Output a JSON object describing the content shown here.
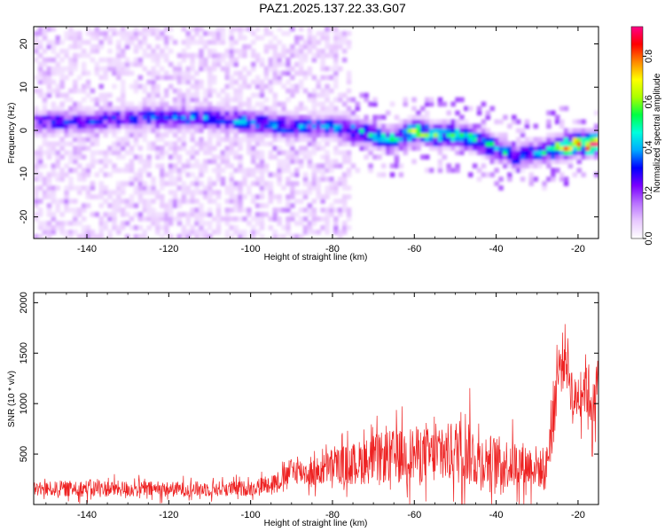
{
  "figure": {
    "title": "PAZ1.2025.137.22.33.G07"
  },
  "colors": {
    "snr_line": "#ee2222",
    "axis": "#000000",
    "background": "#ffffff"
  },
  "chart_data": [
    {
      "type": "heatmap",
      "title": "PAZ1.2025.137.22.33.G07",
      "xlabel": "Height of straight line (km)",
      "ylabel": "Frequency (Hz)",
      "xlim": [
        -153,
        -15
      ],
      "ylim": [
        -25,
        24
      ],
      "xticks": [
        -140,
        -120,
        -100,
        -80,
        -60,
        -40,
        -20
      ],
      "yticks": [
        -20,
        -10,
        0,
        10,
        20
      ],
      "colorbar": {
        "label": "Normalized spectral amplitude",
        "range": [
          0,
          0.93
        ],
        "ticks": [
          0.0,
          0.2,
          0.4,
          0.6,
          0.8
        ],
        "tick_labels": [
          "0.0",
          "0.2",
          "0.4",
          "0.6",
          "0.8"
        ],
        "colormap": [
          "#ffffff",
          "#e8c8ff",
          "#b870ff",
          "#7a00ff",
          "#0000ff",
          "#00aaff",
          "#00ffdd",
          "#00ff44",
          "#aaff00",
          "#ffff00",
          "#ff8800",
          "#ff0000",
          "#ff0088"
        ]
      },
      "ridge": {
        "x": [
          -140,
          -130,
          -120,
          -110,
          -100,
          -90,
          -80,
          -75,
          -70,
          -65,
          -60,
          -55,
          -50,
          -45,
          -40,
          -35,
          -30,
          -25,
          -20,
          -15
        ],
        "freq": [
          2,
          3,
          3,
          3,
          2,
          1,
          1,
          0,
          -1,
          -2,
          0,
          -1,
          -1,
          -2,
          -4,
          -6,
          -5,
          -4,
          -3,
          -3
        ],
        "amplitude": [
          0.25,
          0.28,
          0.3,
          0.3,
          0.32,
          0.33,
          0.3,
          0.35,
          0.38,
          0.4,
          0.5,
          0.45,
          0.42,
          0.4,
          0.4,
          0.35,
          0.3,
          0.55,
          0.7,
          0.85
        ]
      },
      "noise_extent_x": [
        -153,
        -75
      ]
    },
    {
      "type": "line",
      "xlabel": "Height of straight line (km)",
      "ylabel": "SNR (10 * v/v)",
      "xlim": [
        -153,
        -15
      ],
      "ylim": [
        0,
        2100
      ],
      "xticks": [
        -140,
        -120,
        -100,
        -80,
        -60,
        -40,
        -20
      ],
      "yticks": [
        500,
        1000,
        1500,
        2000
      ],
      "envelope": {
        "x": [
          -153,
          -140,
          -120,
          -100,
          -92,
          -90,
          -85,
          -80,
          -75,
          -70,
          -65,
          -60,
          -55,
          -50,
          -48,
          -45,
          -40,
          -35,
          -30,
          -28,
          -26,
          -25,
          -23,
          -21,
          -20,
          -18,
          -16,
          -15
        ],
        "mean": [
          150,
          160,
          150,
          160,
          250,
          350,
          300,
          380,
          400,
          450,
          480,
          500,
          480,
          520,
          600,
          450,
          420,
          400,
          380,
          300,
          900,
          1300,
          1500,
          1000,
          1100,
          1200,
          900,
          1200
        ],
        "spread": [
          100,
          120,
          110,
          110,
          150,
          180,
          200,
          250,
          300,
          350,
          380,
          400,
          400,
          450,
          600,
          400,
          380,
          350,
          300,
          250,
          500,
          400,
          450,
          350,
          350,
          450,
          450,
          700
        ]
      }
    }
  ]
}
